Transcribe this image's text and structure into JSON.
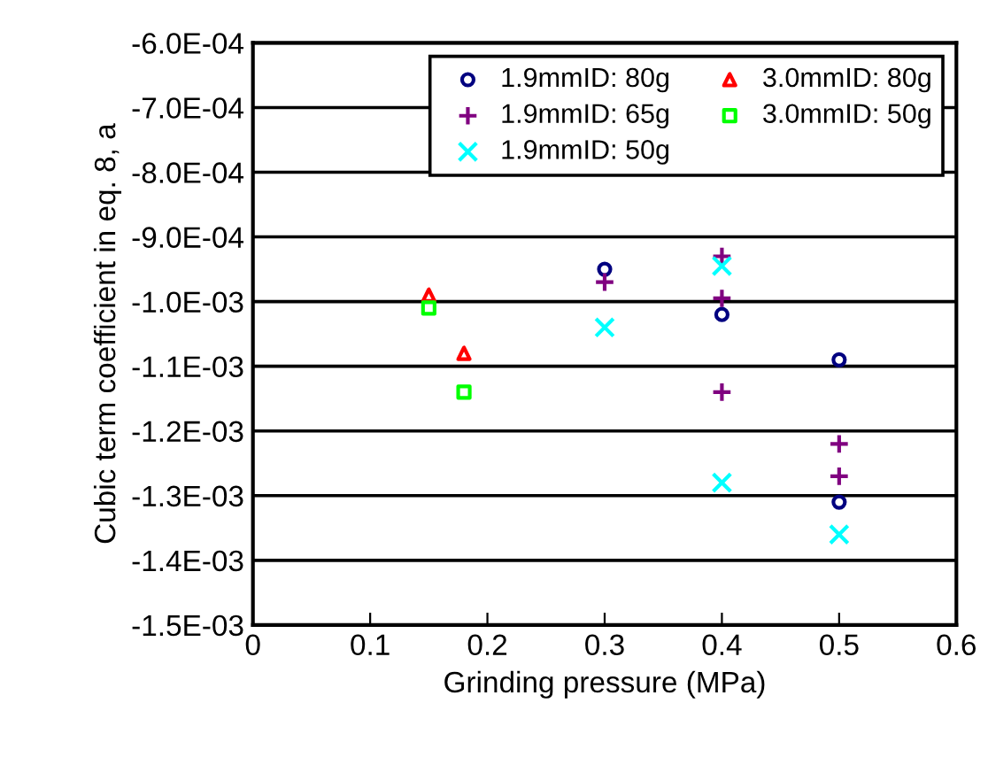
{
  "chart_data": {
    "type": "scatter",
    "xlabel": "Grinding pressure (MPa)",
    "ylabel": "Cubic term coefficient in eq. 8, a",
    "series": [
      {
        "name": "1.9mmID: 80g",
        "color": "#000080",
        "marker": "circle",
        "x": [
          0.3,
          0.4,
          0.5,
          0.5
        ],
        "values": [
          -0.00095,
          -0.00102,
          -0.00109,
          -0.00131
        ]
      },
      {
        "name": "1.9mmID: 65g",
        "color": "#800080",
        "marker": "plus",
        "x": [
          0.3,
          0.4,
          0.4,
          0.4,
          0.5,
          0.5
        ],
        "values": [
          -0.00097,
          -0.00093,
          -0.000995,
          -0.00114,
          -0.00122,
          -0.00127
        ]
      },
      {
        "name": "1.9mmID: 50g",
        "color": "#00ffff",
        "marker": "cross",
        "x": [
          0.3,
          0.4,
          0.4,
          0.5
        ],
        "values": [
          -0.00104,
          -0.000945,
          -0.00128,
          -0.00136
        ]
      },
      {
        "name": "3.0mmID: 80g",
        "color": "#ff0000",
        "marker": "triangle",
        "x": [
          0.15,
          0.18
        ],
        "values": [
          -0.00099,
          -0.00108
        ]
      },
      {
        "name": "3.0mmID: 50g",
        "color": "#00ff00",
        "marker": "square",
        "x": [
          0.15,
          0.18
        ],
        "values": [
          -0.00101,
          -0.00114
        ]
      }
    ],
    "xlim": [
      0,
      0.6
    ],
    "xticks": [
      0,
      0.1,
      0.2,
      0.3,
      0.4,
      0.5,
      0.6
    ],
    "ylim": [
      -0.0015,
      -0.0006
    ],
    "yticks": [
      {
        "value": -0.0015,
        "label": "-1.5E-03"
      },
      {
        "value": -0.0014,
        "label": "-1.4E-03"
      },
      {
        "value": -0.0013,
        "label": "-1.3E-03"
      },
      {
        "value": -0.0012,
        "label": "-1.2E-03"
      },
      {
        "value": -0.0011,
        "label": "-1.1E-03"
      },
      {
        "value": -0.001,
        "label": "-1.0E-03"
      },
      {
        "value": -0.0009,
        "label": "-9.0E-04"
      },
      {
        "value": -0.0008,
        "label": "-8.0E-04"
      },
      {
        "value": -0.0007,
        "label": "-7.0E-04"
      },
      {
        "value": -0.0006,
        "label": "-6.0E-04"
      }
    ],
    "grid": "y",
    "legend": "top right"
  }
}
